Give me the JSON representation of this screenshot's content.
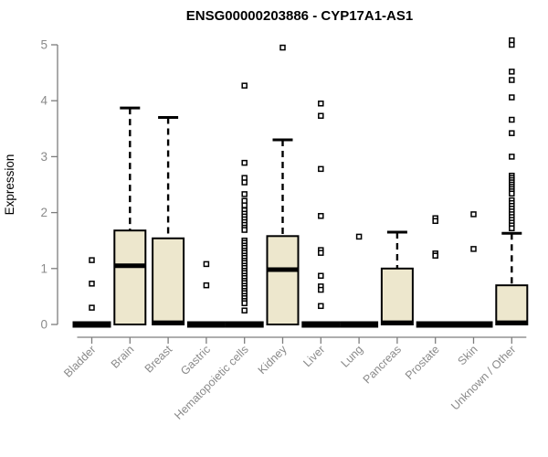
{
  "chart_data": {
    "type": "boxplot",
    "title": "ENSG00000203886 - CYP17A1-AS1",
    "ylabel": "Expression",
    "xlabel": "",
    "ylim": [
      0,
      5
    ],
    "yticks": [
      0,
      1,
      2,
      3,
      4,
      5
    ],
    "grid": false,
    "legend": "none",
    "box_fill": "#EDE7CD",
    "box_stroke": "#000000",
    "axis_color": "#7D7D7D",
    "label_color": "#8A8A8A",
    "title_color": "#000000",
    "categories": [
      "Bladder",
      "Brain",
      "Breast",
      "Gastric",
      "Hematopoietic cells",
      "Kidney",
      "Liver",
      "Lung",
      "Pancreas",
      "Prostate",
      "Skin",
      "Unknown / Other"
    ],
    "series": [
      {
        "name": "Bladder",
        "min": 0,
        "q1": 0,
        "median": 0,
        "q3": 0,
        "whisker_high": 0,
        "outliers": [
          1.15,
          0.73,
          0.3
        ]
      },
      {
        "name": "Brain",
        "min": 0,
        "q1": 0,
        "median": 1.05,
        "q3": 1.68,
        "whisker_high": 3.87,
        "outliers": []
      },
      {
        "name": "Breast",
        "min": 0,
        "q1": 0,
        "median": 0.03,
        "q3": 1.54,
        "whisker_high": 3.7,
        "outliers": []
      },
      {
        "name": "Gastric",
        "min": 0,
        "q1": 0,
        "median": 0,
        "q3": 0,
        "whisker_high": 0,
        "outliers": [
          1.08,
          0.7
        ]
      },
      {
        "name": "Hematopoietic cells",
        "min": 0,
        "q1": 0,
        "median": 0,
        "q3": 0,
        "whisker_high": 0,
        "outliers": [
          4.27,
          2.89,
          2.62,
          2.54,
          2.33,
          2.21,
          2.13,
          2.04,
          1.98,
          1.93,
          1.88,
          1.83,
          1.78,
          1.73,
          1.69,
          1.5,
          1.46,
          1.41,
          1.37,
          1.32,
          1.28,
          1.23,
          1.19,
          1.14,
          1.1,
          1.05,
          1.01,
          0.96,
          0.92,
          0.87,
          0.83,
          0.78,
          0.74,
          0.69,
          0.65,
          0.6,
          0.56,
          0.51,
          0.47,
          0.42,
          0.38,
          0.25
        ]
      },
      {
        "name": "Kidney",
        "min": 0,
        "q1": 0,
        "median": 0.98,
        "q3": 1.58,
        "whisker_high": 3.3,
        "outliers": [
          4.95
        ]
      },
      {
        "name": "Liver",
        "min": 0,
        "q1": 0,
        "median": 0,
        "q3": 0,
        "whisker_high": 0,
        "outliers": [
          3.95,
          3.73,
          2.78,
          1.94,
          1.33,
          1.28,
          0.87,
          0.68,
          0.62,
          0.33
        ]
      },
      {
        "name": "Lung",
        "min": 0,
        "q1": 0,
        "median": 0,
        "q3": 0,
        "whisker_high": 0,
        "outliers": [
          1.57
        ]
      },
      {
        "name": "Pancreas",
        "min": 0,
        "q1": 0,
        "median": 0.03,
        "q3": 1.0,
        "whisker_high": 1.65,
        "outliers": []
      },
      {
        "name": "Prostate",
        "min": 0,
        "q1": 0,
        "median": 0,
        "q3": 0,
        "whisker_high": 0,
        "outliers": [
          1.9,
          1.85,
          1.27,
          1.23
        ]
      },
      {
        "name": "Skin",
        "min": 0,
        "q1": 0,
        "median": 0,
        "q3": 0,
        "whisker_high": 0,
        "outliers": [
          1.97,
          1.35
        ]
      },
      {
        "name": "Unknown / Other",
        "min": 0,
        "q1": 0,
        "median": 0.03,
        "q3": 0.7,
        "whisker_high": 1.63,
        "outliers": [
          5.08,
          5.0,
          4.52,
          4.37,
          4.06,
          3.66,
          3.42,
          3.0,
          2.66,
          2.62,
          2.58,
          2.54,
          2.5,
          2.46,
          2.42,
          2.38,
          2.34,
          2.22,
          2.17,
          2.12,
          2.07,
          2.02,
          1.97,
          1.92,
          1.87,
          1.82,
          1.77,
          1.72
        ]
      }
    ]
  }
}
